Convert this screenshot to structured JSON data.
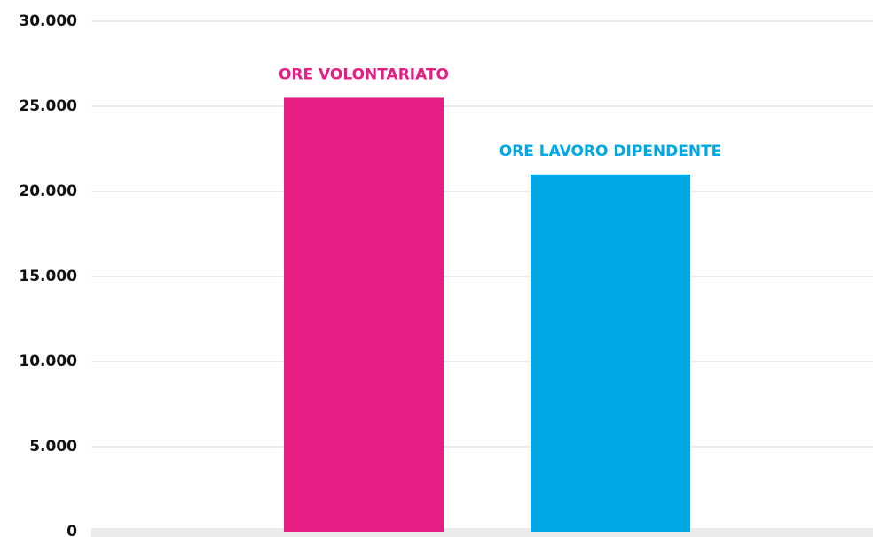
{
  "chart_data": {
    "type": "bar",
    "categories": [
      "ORE VOLONTARIATO",
      "ORE LAVORO DIPENDENTE"
    ],
    "values": [
      25500,
      21000
    ],
    "colors": [
      "#e61e84",
      "#00a8e6"
    ],
    "ylim": [
      0,
      30000
    ],
    "yticks": [
      0,
      {
        "value": 5000,
        "label": "5.000"
      },
      {
        "value": 10000,
        "label": "10.000"
      },
      {
        "value": 15000,
        "label": "15.000"
      },
      {
        "value": 20000,
        "label": "20.000"
      },
      {
        "value": 25000,
        "label": "25.000"
      },
      {
        "value": 30000,
        "label": "30.000"
      }
    ],
    "grid": true
  }
}
